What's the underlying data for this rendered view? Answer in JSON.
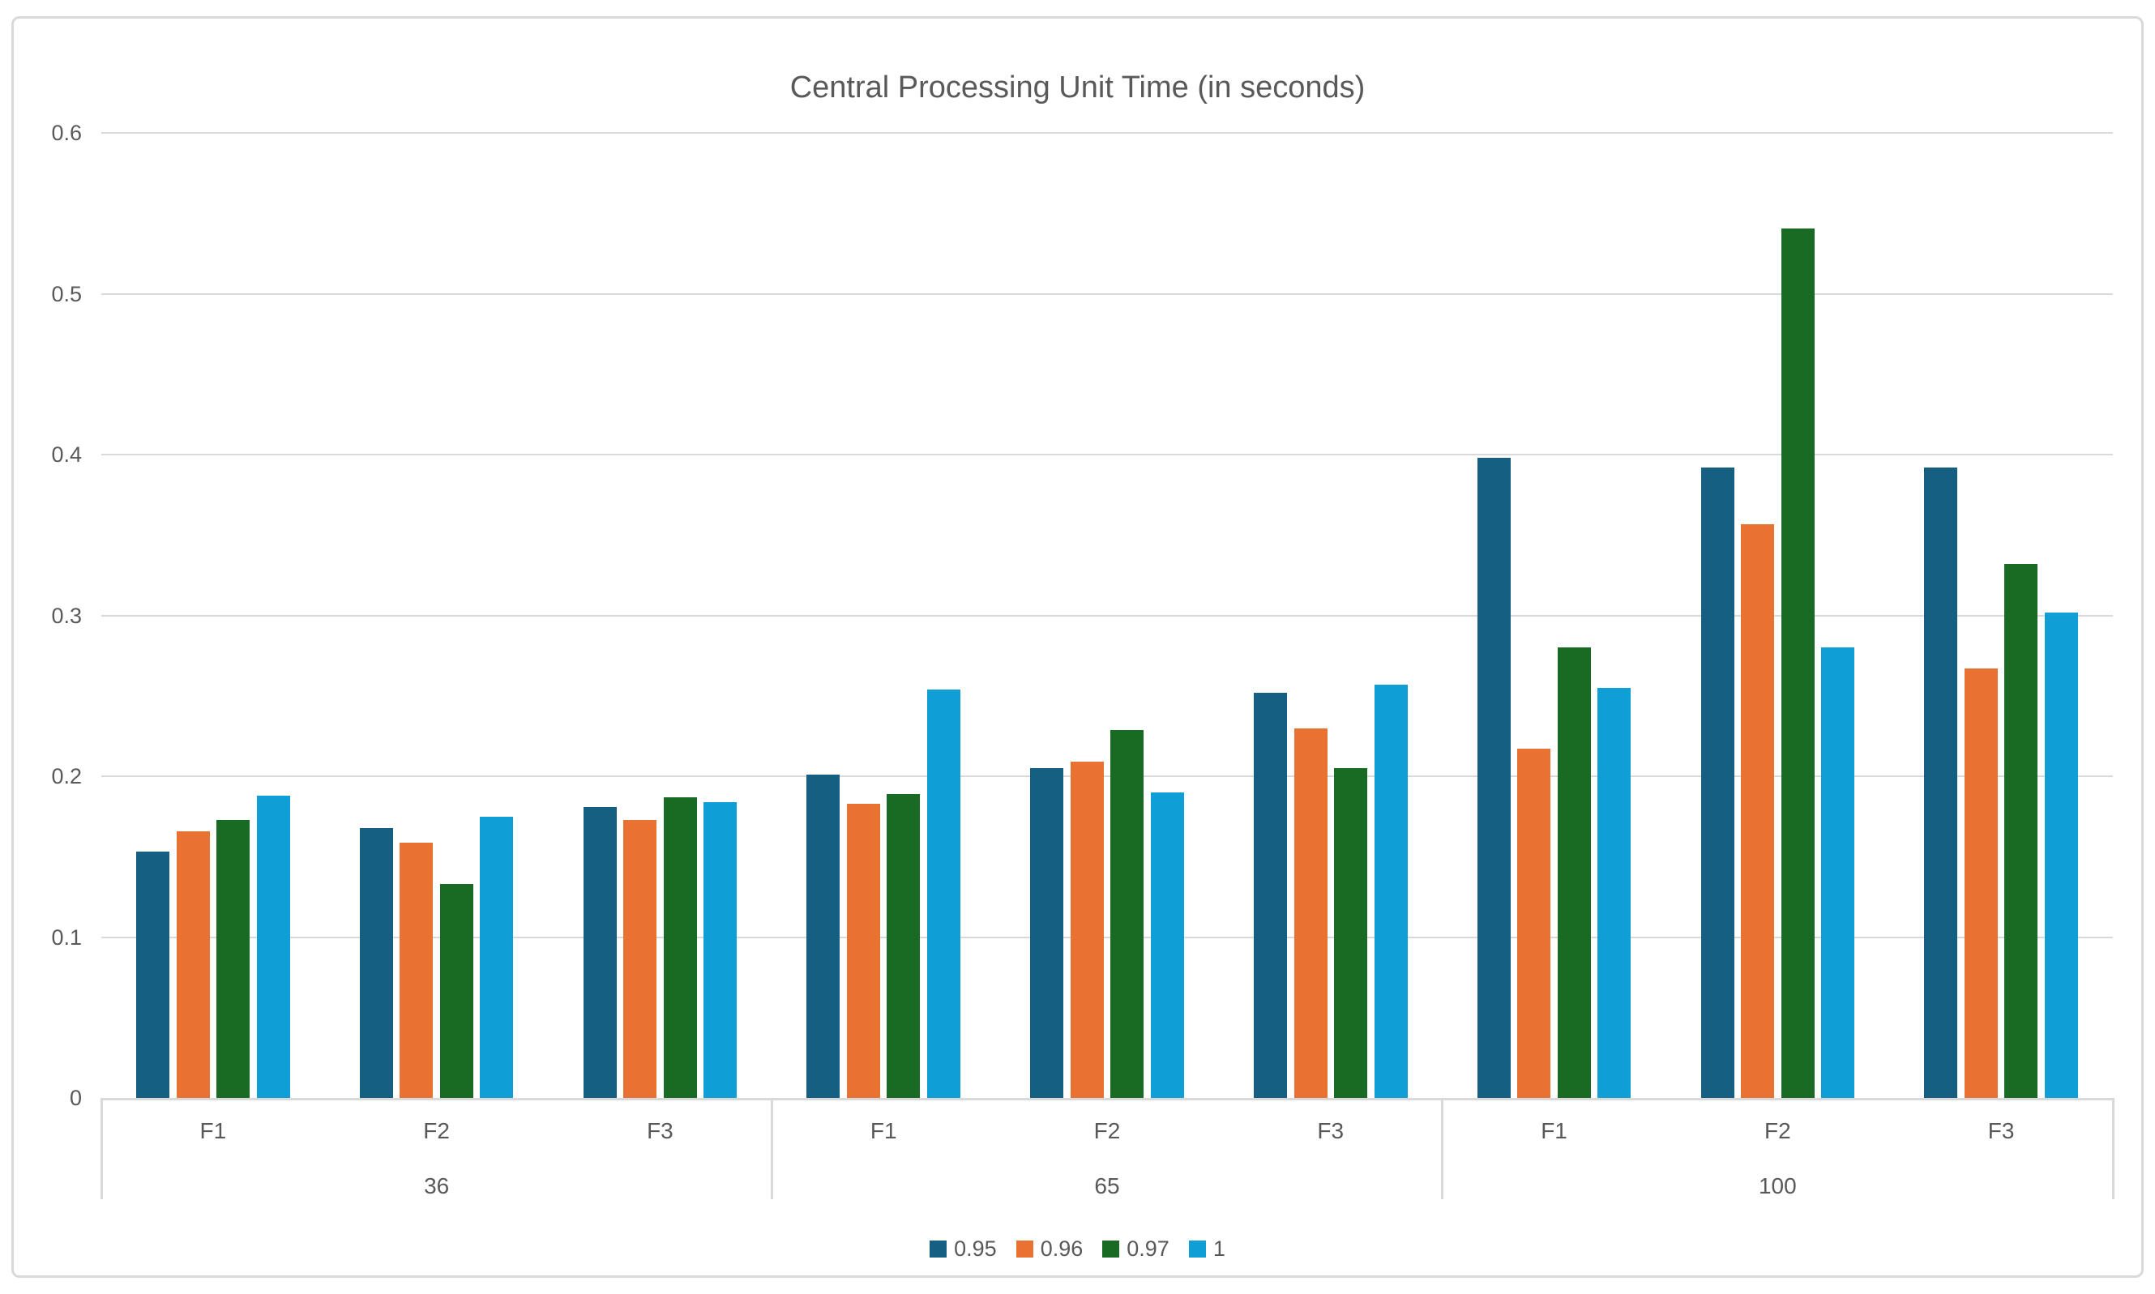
{
  "page": {
    "background": "#FFFFFF",
    "card_border_color": "#D9D9D9",
    "text_color": "#595959",
    "gridline_color": "#D9D9D9"
  },
  "chart_data": {
    "type": "bar",
    "title": "Central Processing Unit Time (in seconds)",
    "groups": [
      "36",
      "65",
      "100"
    ],
    "categories": [
      "F1",
      "F2",
      "F3"
    ],
    "series": [
      {
        "name": "0.95",
        "color": "#156082",
        "values": [
          [
            0.153,
            0.168,
            0.181
          ],
          [
            0.201,
            0.205,
            0.252
          ],
          [
            0.398,
            0.392,
            0.392
          ]
        ]
      },
      {
        "name": "0.96",
        "color": "#E97132",
        "values": [
          [
            0.166,
            0.159,
            0.173
          ],
          [
            0.183,
            0.209,
            0.23
          ],
          [
            0.217,
            0.357,
            0.267
          ]
        ]
      },
      {
        "name": "0.97",
        "color": "#196B24",
        "values": [
          [
            0.173,
            0.133,
            0.187
          ],
          [
            0.189,
            0.229,
            0.205
          ],
          [
            0.28,
            0.541,
            0.332
          ]
        ]
      },
      {
        "name": "1",
        "color": "#0F9ED5",
        "values": [
          [
            0.188,
            0.175,
            0.184
          ],
          [
            0.254,
            0.19,
            0.257
          ],
          [
            0.255,
            0.28,
            0.302
          ]
        ]
      }
    ],
    "y_ticks": [
      "0",
      "0.1",
      "0.2",
      "0.3",
      "0.4",
      "0.5",
      "0.6"
    ],
    "ylim": [
      0,
      0.6
    ],
    "grid": true,
    "legend_position": "bottom",
    "xlabel": "",
    "ylabel": ""
  }
}
